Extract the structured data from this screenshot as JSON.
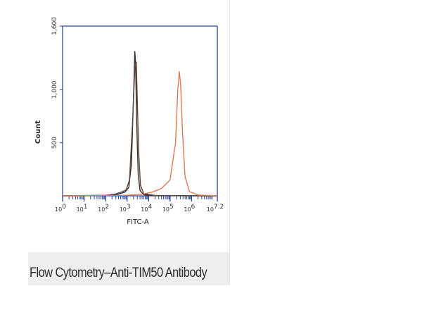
{
  "caption": "Flow Cytometry–Anti-TIM50 Antibody",
  "chart_data": {
    "type": "line",
    "xlabel": "FITC-A",
    "ylabel": "Count",
    "xscale": "log",
    "xlim": [
      1,
      15848932
    ],
    "ylim": [
      0,
      1600
    ],
    "xticks": [
      {
        "value": 1,
        "mantissa": "10",
        "exp": "0"
      },
      {
        "value": 10,
        "mantissa": "10",
        "exp": "1"
      },
      {
        "value": 100,
        "mantissa": "10",
        "exp": "2"
      },
      {
        "value": 1000,
        "mantissa": "10",
        "exp": "3"
      },
      {
        "value": 10000,
        "mantissa": "10",
        "exp": "4"
      },
      {
        "value": 100000,
        "mantissa": "10",
        "exp": "5"
      },
      {
        "value": 1000000,
        "mantissa": "10",
        "exp": "6"
      },
      {
        "value": 15848932,
        "mantissa": "10",
        "exp": "7.2"
      }
    ],
    "yticks": [
      {
        "value": 500,
        "label": "500"
      },
      {
        "value": 1000,
        "label": "1,000"
      },
      {
        "value": 1600,
        "label": "1,600"
      }
    ],
    "grid": false,
    "legend": "none",
    "series": [
      {
        "color": "#3a2a22",
        "points": [
          [
            1,
            0
          ],
          [
            100,
            3
          ],
          [
            300,
            10
          ],
          [
            800,
            35
          ],
          [
            1200,
            80
          ],
          [
            1600,
            300
          ],
          [
            2000,
            950
          ],
          [
            2300,
            1360
          ],
          [
            2500,
            1250
          ],
          [
            2800,
            700
          ],
          [
            3300,
            200
          ],
          [
            4000,
            50
          ],
          [
            6000,
            10
          ],
          [
            20000,
            2
          ],
          [
            15848932,
            0
          ]
        ]
      },
      {
        "color": "#5a4a40",
        "points": [
          [
            1,
            0
          ],
          [
            100,
            5
          ],
          [
            300,
            18
          ],
          [
            600,
            40
          ],
          [
            900,
            55
          ],
          [
            1300,
            150
          ],
          [
            1800,
            700
          ],
          [
            2300,
            1200
          ],
          [
            2700,
            1260
          ],
          [
            3000,
            900
          ],
          [
            3500,
            400
          ],
          [
            4200,
            100
          ],
          [
            6000,
            20
          ],
          [
            20000,
            3
          ],
          [
            15848932,
            0
          ]
        ]
      },
      {
        "color": "#e07a55",
        "points": [
          [
            1,
            0
          ],
          [
            1000,
            5
          ],
          [
            5000,
            15
          ],
          [
            15000,
            35
          ],
          [
            40000,
            70
          ],
          [
            100000,
            150
          ],
          [
            180000,
            500
          ],
          [
            230000,
            1000
          ],
          [
            270000,
            1170
          ],
          [
            310000,
            1050
          ],
          [
            380000,
            600
          ],
          [
            500000,
            180
          ],
          [
            800000,
            40
          ],
          [
            2000000,
            8
          ],
          [
            15848932,
            0
          ]
        ]
      }
    ]
  }
}
